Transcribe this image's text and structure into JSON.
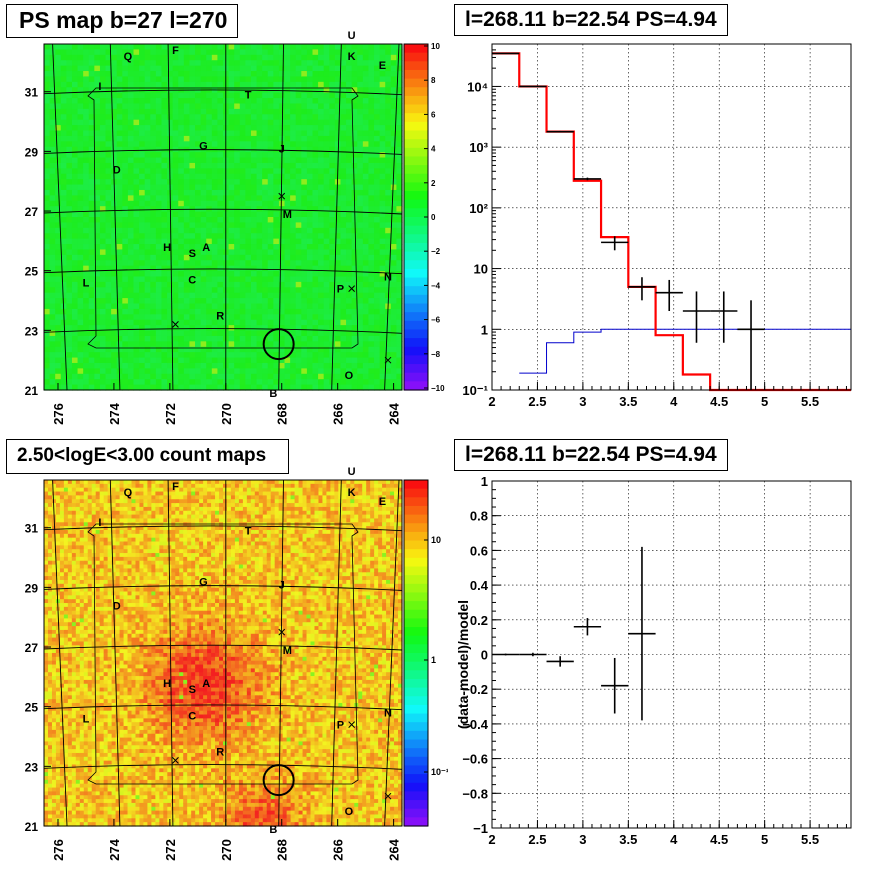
{
  "colors": {
    "frame": "#000000",
    "stat_line": "#000000",
    "model_line": "#ff0000",
    "bkg_line": "#0000cc",
    "grid": "#000000"
  },
  "panels": {
    "tl": {
      "title": "PS map b=27 l=270",
      "l_ticks": [
        "276",
        "274",
        "272",
        "270",
        "268",
        "266",
        "264"
      ],
      "b_ticks": [
        "31",
        "29",
        "27",
        "25",
        "23",
        "21"
      ],
      "colorbar_ticks": [
        "10",
        "8",
        "6",
        "4",
        "2",
        "0",
        "−2",
        "−4",
        "−6",
        "−8",
        "−10"
      ],
      "colorbar_range": [
        -10,
        10
      ],
      "labels": [
        {
          "t": "U",
          "l": 265.5,
          "b": 32.9
        },
        {
          "t": "Q",
          "l": 273.5,
          "b": 32.2
        },
        {
          "t": "F",
          "l": 271.8,
          "b": 32.4
        },
        {
          "t": "K",
          "l": 265.5,
          "b": 32.2
        },
        {
          "t": "E",
          "l": 264.4,
          "b": 31.9
        },
        {
          "t": "I",
          "l": 274.5,
          "b": 31.2
        },
        {
          "t": "T",
          "l": 269.2,
          "b": 30.9
        },
        {
          "t": "G",
          "l": 270.8,
          "b": 29.2
        },
        {
          "t": "J",
          "l": 268.0,
          "b": 29.1
        },
        {
          "t": "D",
          "l": 273.9,
          "b": 28.4
        },
        {
          "t": "M",
          "l": 267.8,
          "b": 26.9
        },
        {
          "t": "H",
          "l": 272.1,
          "b": 25.8
        },
        {
          "t": "A",
          "l": 270.7,
          "b": 25.8
        },
        {
          "t": "S",
          "l": 271.2,
          "b": 25.6
        },
        {
          "t": "C",
          "l": 271.2,
          "b": 24.7
        },
        {
          "t": "L",
          "l": 275.0,
          "b": 24.6
        },
        {
          "t": "P",
          "l": 265.9,
          "b": 24.4
        },
        {
          "t": "N",
          "l": 264.2,
          "b": 24.8
        },
        {
          "t": "R",
          "l": 270.2,
          "b": 23.5
        },
        {
          "t": "O",
          "l": 265.6,
          "b": 21.5
        },
        {
          "t": "B",
          "l": 268.3,
          "b": 20.9
        }
      ],
      "crosses": [
        {
          "l": 268.0,
          "b": 27.5
        },
        {
          "l": 265.5,
          "b": 24.4
        },
        {
          "l": 271.8,
          "b": 23.2
        },
        {
          "l": 264.2,
          "b": 22.0
        }
      ],
      "ps_circle": {
        "l": 268.11,
        "b": 22.54
      }
    },
    "tr": {
      "title": "l=268.11 b=22.54 PS=4.94",
      "xticks": [
        "2",
        "2.5",
        "3",
        "3.5",
        "4",
        "4.5",
        "5",
        "5.5"
      ],
      "yticks": [
        "10⁻¹",
        "1",
        "10",
        "10²",
        "10³",
        "10⁴"
      ]
    },
    "bl": {
      "title": "2.50<logE<3.00 count maps",
      "l_ticks": [
        "276",
        "274",
        "272",
        "270",
        "268",
        "266",
        "264"
      ],
      "b_ticks": [
        "31",
        "29",
        "27",
        "25",
        "23",
        "21"
      ],
      "colorbar_ticks": [
        "10",
        "1",
        "10⁻¹"
      ]
    },
    "br": {
      "title": "l=268.11 b=22.54 PS=4.94",
      "ylabel": "(data-model)/model",
      "xticks": [
        "2",
        "2.5",
        "3",
        "3.5",
        "4",
        "4.5",
        "5",
        "5.5"
      ],
      "yticks": [
        "−1",
        "−0.8",
        "−0.6",
        "−0.4",
        "−0.2",
        "0",
        "0.2",
        "0.4",
        "0.6",
        "0.8",
        "1"
      ]
    }
  },
  "chart_data": [
    {
      "type": "heatmap",
      "title": "PS map b=27 l=270",
      "xlabel": "",
      "ylabel": "",
      "xlim": [
        276.5,
        263.7
      ],
      "ylim": [
        21,
        32.6
      ],
      "colorbar_range": [
        -10,
        10
      ]
    },
    {
      "type": "line",
      "title": "l=268.11 b=22.54 PS=4.94",
      "xlabel": "",
      "ylabel": "",
      "xlim": [
        2.0,
        5.95
      ],
      "ylim": [
        0.1,
        50000
      ],
      "yscale": "log",
      "grid": true,
      "model_step": {
        "edges": [
          2.0,
          2.3,
          2.6,
          2.9,
          3.2,
          3.5,
          3.8,
          4.1,
          4.4,
          4.7,
          5.0,
          5.95
        ],
        "values": [
          35000,
          10000,
          1800,
          280,
          33,
          5,
          0.8,
          0.18,
          0.1,
          0.1,
          0.1
        ]
      },
      "background_step": {
        "edges": [
          2.3,
          2.6,
          2.9,
          3.2,
          3.5,
          3.8,
          5.95
        ],
        "values": [
          0.19,
          0.6,
          0.9,
          1.0,
          1.0,
          1.0
        ]
      },
      "data_points": [
        {
          "x": 2.15,
          "y": 35000,
          "xerr": 0.15,
          "ylo": 35000,
          "yhi": 35000
        },
        {
          "x": 2.45,
          "y": 10000,
          "xerr": 0.15,
          "ylo": 10000,
          "yhi": 10000
        },
        {
          "x": 2.75,
          "y": 1800,
          "xerr": 0.15,
          "ylo": 1750,
          "yhi": 1850
        },
        {
          "x": 3.05,
          "y": 300,
          "xerr": 0.15,
          "ylo": 285,
          "yhi": 315
        },
        {
          "x": 3.35,
          "y": 27,
          "xerr": 0.15,
          "ylo": 20,
          "yhi": 34
        },
        {
          "x": 3.65,
          "y": 5,
          "xerr": 0.15,
          "ylo": 3.0,
          "yhi": 7.2
        },
        {
          "x": 3.95,
          "y": 4,
          "xerr": 0.15,
          "ylo": 2.0,
          "yhi": 6.5
        },
        {
          "x": 4.25,
          "y": 2,
          "xerr": 0.15,
          "ylo": 0.6,
          "yhi": 4.2
        },
        {
          "x": 4.55,
          "y": 2,
          "xerr": 0.15,
          "ylo": 0.6,
          "yhi": 4.2
        },
        {
          "x": 4.85,
          "y": 1,
          "xerr": 0.15,
          "ylo": 0.1,
          "yhi": 3.0
        }
      ]
    },
    {
      "type": "heatmap",
      "title": "2.50<logE<3.00 count maps",
      "xlabel": "",
      "ylabel": "",
      "xlim": [
        276.5,
        263.7
      ],
      "ylim": [
        21,
        32.6
      ],
      "colorscale": "log"
    },
    {
      "type": "scatter",
      "title": "l=268.11 b=22.54 PS=4.94",
      "xlabel": "",
      "ylabel": "(data-model)/model",
      "xlim": [
        2.0,
        5.95
      ],
      "ylim": [
        -1,
        1
      ],
      "grid": true,
      "points": [
        {
          "x": 2.15,
          "y": 0.0,
          "xerr": 0.15,
          "ylo": -0.005,
          "yhi": 0.005
        },
        {
          "x": 2.45,
          "y": 0.0,
          "xerr": 0.15,
          "ylo": -0.01,
          "yhi": 0.01
        },
        {
          "x": 2.75,
          "y": -0.04,
          "xerr": 0.15,
          "ylo": -0.07,
          "yhi": -0.01
        },
        {
          "x": 3.05,
          "y": 0.16,
          "xerr": 0.15,
          "ylo": 0.11,
          "yhi": 0.21
        },
        {
          "x": 3.35,
          "y": -0.18,
          "xerr": 0.15,
          "ylo": -0.34,
          "yhi": -0.02
        },
        {
          "x": 3.65,
          "y": 0.12,
          "xerr": 0.15,
          "ylo": -0.38,
          "yhi": 0.62
        }
      ]
    }
  ]
}
